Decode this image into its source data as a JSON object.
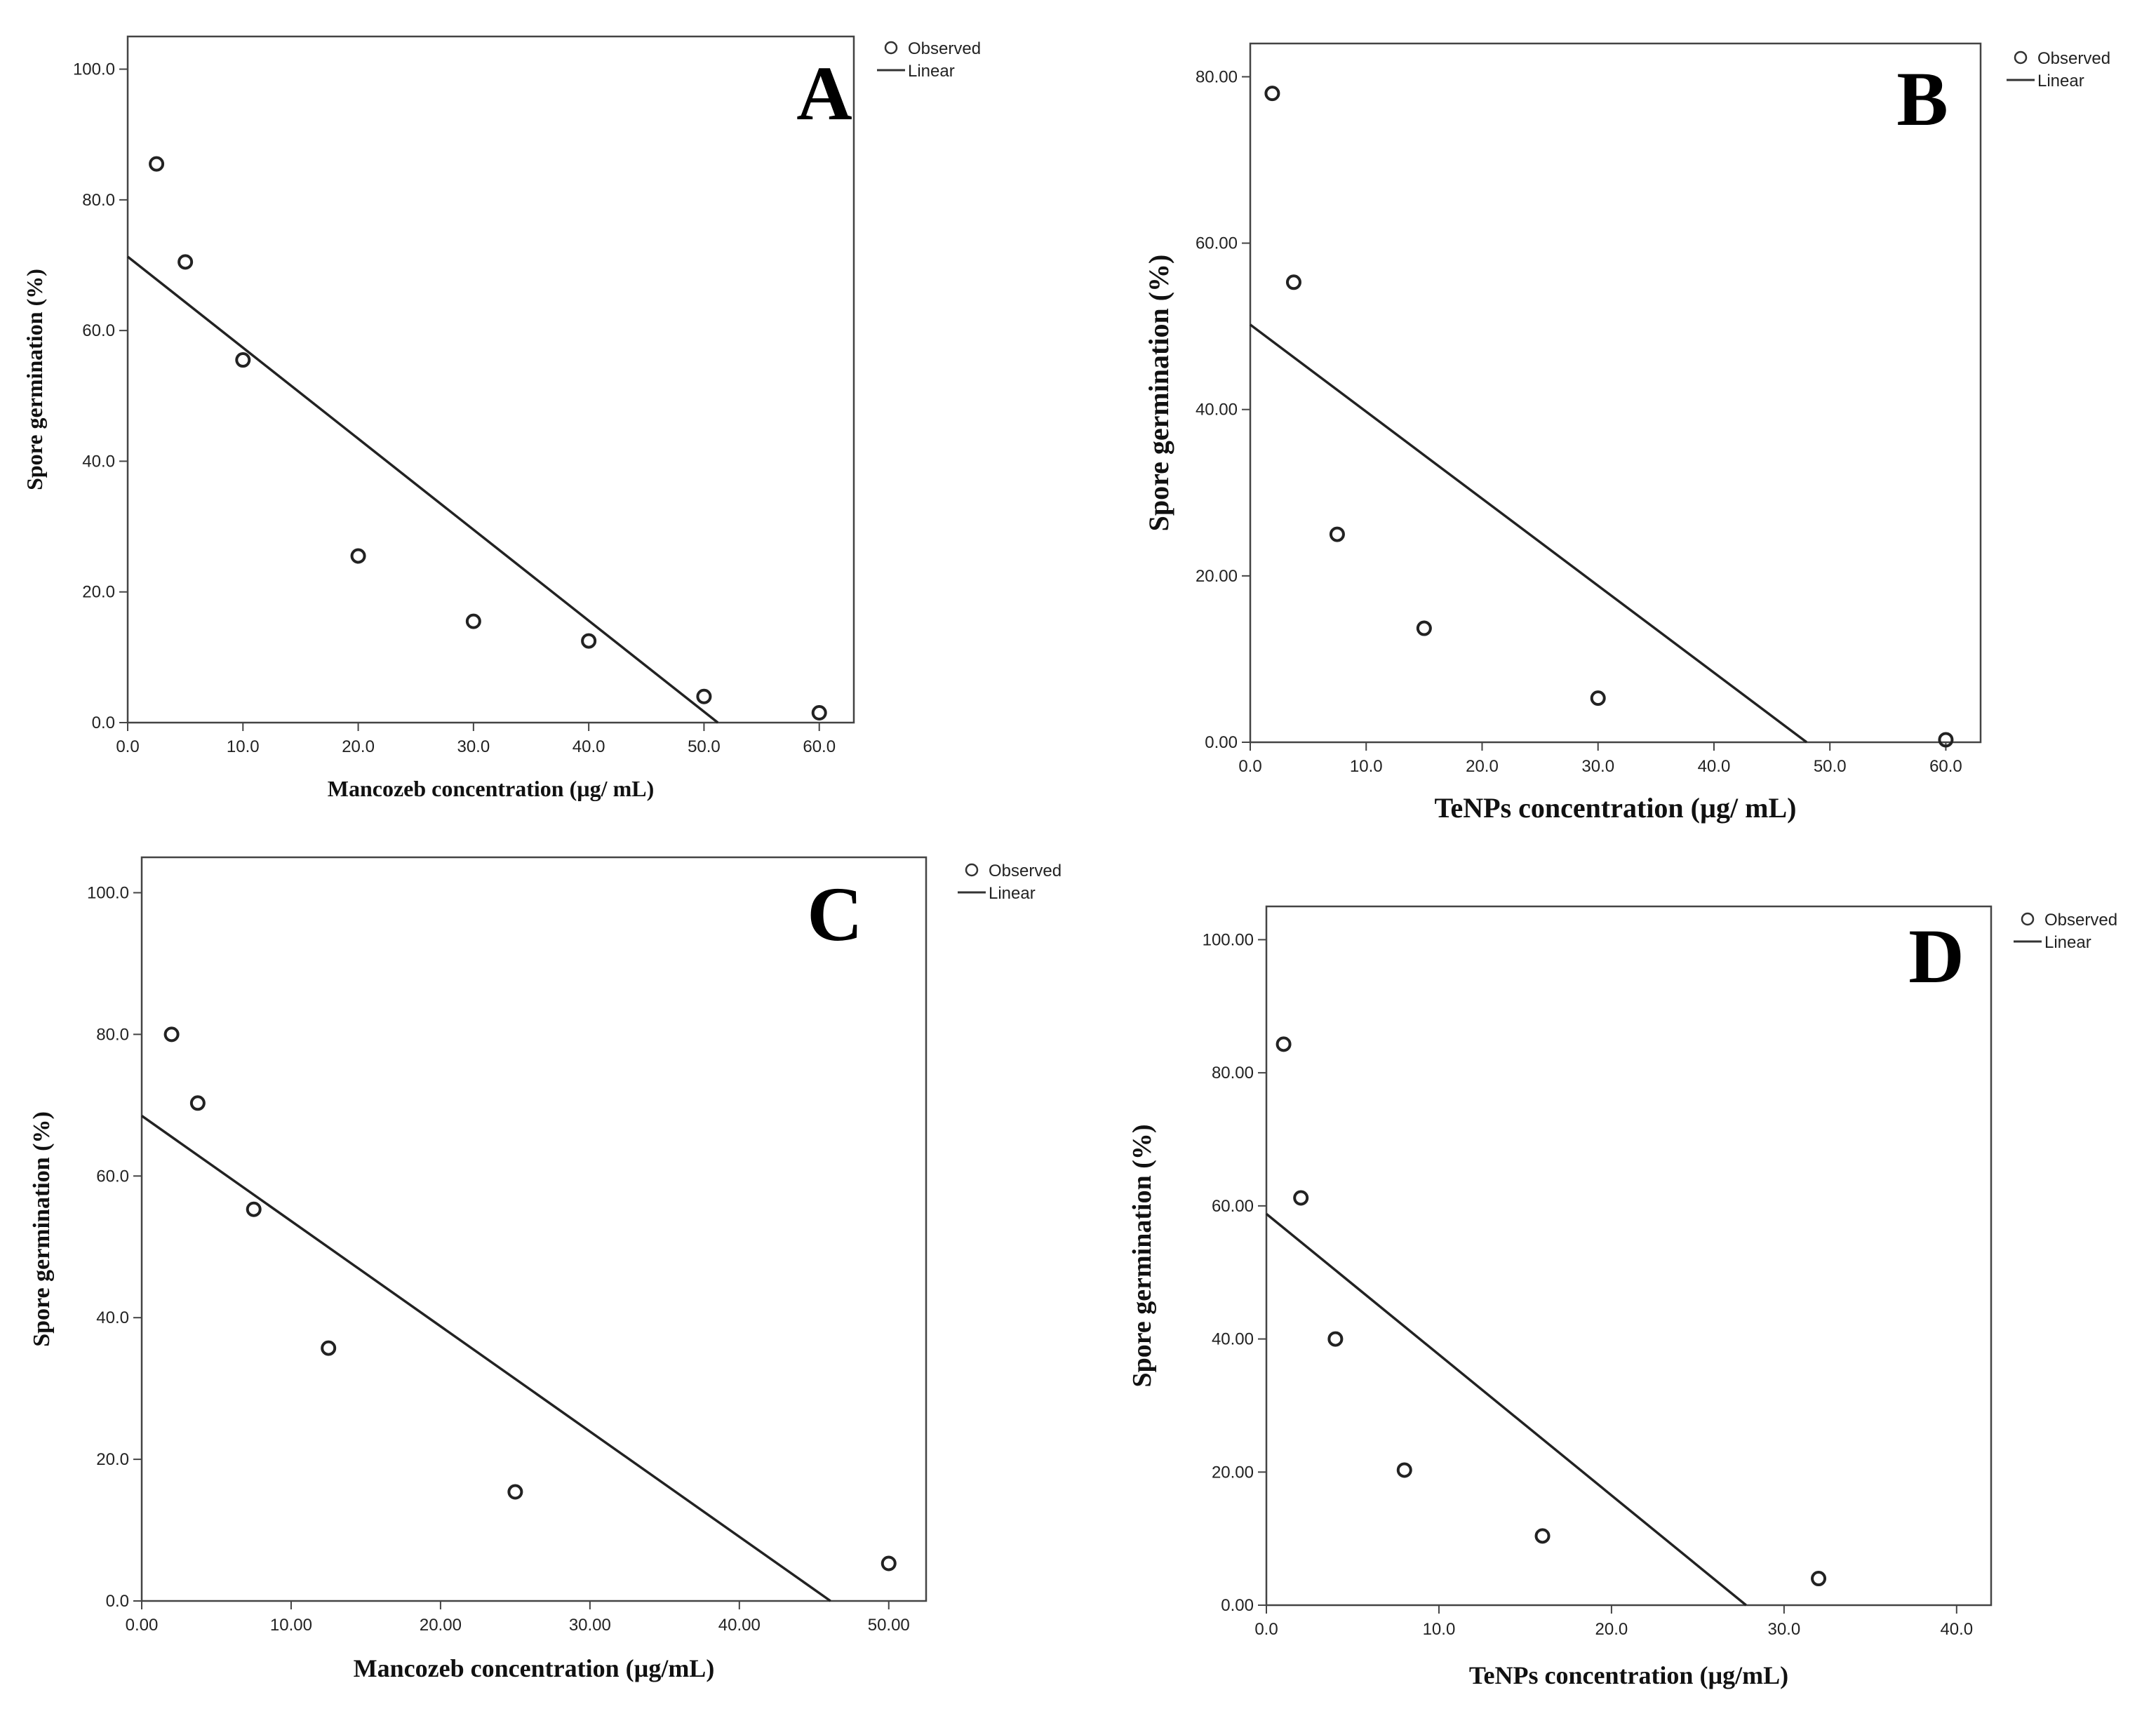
{
  "chart_data": [
    {
      "panel": "A",
      "type": "scatter",
      "title": "",
      "xlabel": "Mancozeb  concentration (µg/ mL)",
      "ylabel": "Spore germination  (%)",
      "xlim": [
        0,
        63
      ],
      "ylim": [
        0,
        105
      ],
      "xticks": [
        0,
        10,
        20,
        30,
        40,
        50,
        60
      ],
      "xtick_labels": [
        "0.0",
        "10.0",
        "20.0",
        "30.0",
        "40.0",
        "50.0",
        "60.0"
      ],
      "yticks": [
        0,
        20,
        40,
        60,
        80,
        100
      ],
      "ytick_labels": [
        "0.0",
        "20.0",
        "40.0",
        "60.0",
        "80.0",
        "100.0"
      ],
      "series": [
        {
          "name": "Observed",
          "x": [
            2.5,
            5,
            10,
            20,
            30,
            40,
            50,
            60
          ],
          "y": [
            85.5,
            70.5,
            55.5,
            25.5,
            15.5,
            12.5,
            4,
            1.5
          ]
        },
        {
          "name": "Linear",
          "x": [
            0,
            51.2
          ],
          "y": [
            71.3,
            0
          ]
        }
      ],
      "legend": {
        "observed": "Observed",
        "linear": "Linear"
      }
    },
    {
      "panel": "B",
      "type": "scatter",
      "title": "",
      "xlabel": "TeNPs concentration (µg/ mL)",
      "ylabel": "Spore germination  (%)",
      "xlim": [
        0,
        63
      ],
      "ylim": [
        0,
        84
      ],
      "xticks": [
        0,
        10,
        20,
        30,
        40,
        50,
        60
      ],
      "xtick_labels": [
        "0.0",
        "10.0",
        "20.0",
        "30.0",
        "40.0",
        "50.0",
        "60.0"
      ],
      "yticks": [
        0,
        20,
        40,
        60,
        80
      ],
      "ytick_labels": [
        "0.00",
        "20.00",
        "40.00",
        "60.00",
        "80.00"
      ],
      "series": [
        {
          "name": "Observed",
          "x": [
            1.9,
            3.75,
            7.5,
            15,
            30,
            60
          ],
          "y": [
            78,
            55.3,
            25,
            13.7,
            5.3,
            0.3
          ]
        },
        {
          "name": "Linear",
          "x": [
            0,
            48
          ],
          "y": [
            50.2,
            0
          ]
        }
      ],
      "legend": {
        "observed": "Observed",
        "linear": "Linear"
      }
    },
    {
      "panel": "C",
      "type": "scatter",
      "title": "",
      "xlabel": "Mancozeb  concentration (µg/mL)",
      "ylabel": "Spore germination      (%)",
      "xlim": [
        0,
        52.5
      ],
      "ylim": [
        0,
        105
      ],
      "xticks": [
        0,
        10,
        20,
        30,
        40,
        50
      ],
      "xtick_labels": [
        "0.00",
        "10.00",
        "20.00",
        "30.00",
        "40.00",
        "50.00"
      ],
      "yticks": [
        0,
        20,
        40,
        60,
        80,
        100
      ],
      "ytick_labels": [
        "0.0",
        "20.0",
        "40.0",
        "60.0",
        "80.0",
        "100.0"
      ],
      "series": [
        {
          "name": "Observed",
          "x": [
            2,
            3.75,
            7.5,
            12.5,
            25,
            50
          ],
          "y": [
            80,
            70.3,
            55.3,
            35.7,
            15.4,
            5.3
          ]
        },
        {
          "name": "Linear",
          "x": [
            0,
            46.1
          ],
          "y": [
            68.5,
            0
          ]
        }
      ],
      "legend": {
        "observed": "Observed",
        "linear": "Linear"
      }
    },
    {
      "panel": "D",
      "type": "scatter",
      "title": "",
      "xlabel": "TeNPs concentration (µg/mL)",
      "ylabel": "Spore germination (%)",
      "xlim": [
        0,
        42
      ],
      "ylim": [
        0,
        105
      ],
      "xticks": [
        0,
        10,
        20,
        30,
        40
      ],
      "xtick_labels": [
        "0.0",
        "10.0",
        "20.0",
        "30.0",
        "40.0"
      ],
      "yticks": [
        0,
        20,
        40,
        60,
        80,
        100
      ],
      "ytick_labels": [
        "0.00",
        "20.00",
        "40.00",
        "60.00",
        "80.00",
        "100.00"
      ],
      "series": [
        {
          "name": "Observed",
          "x": [
            1,
            2,
            4,
            8,
            16,
            32
          ],
          "y": [
            84.3,
            61.2,
            40,
            20.3,
            10.4,
            4
          ]
        },
        {
          "name": "Linear",
          "x": [
            0,
            27.8
          ],
          "y": [
            58.8,
            0
          ]
        }
      ],
      "legend": {
        "observed": "Observed",
        "linear": "Linear"
      }
    }
  ]
}
